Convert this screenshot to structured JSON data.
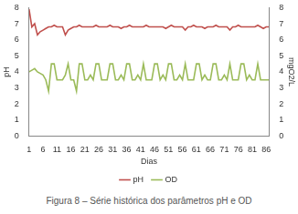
{
  "chart_data": {
    "type": "line",
    "title": "Figura 8 – Série histórica dos parâmetros pH e OD",
    "x_label": "Dias",
    "y_label": "pH",
    "y2_label": "mgO2/L",
    "x": [
      1,
      2,
      3,
      4,
      5,
      6,
      7,
      8,
      9,
      10,
      11,
      12,
      13,
      14,
      15,
      16,
      17,
      18,
      19,
      20,
      21,
      22,
      23,
      24,
      25,
      26,
      27,
      28,
      29,
      30,
      31,
      32,
      33,
      34,
      35,
      36,
      37,
      38,
      39,
      40,
      41,
      42,
      43,
      44,
      45,
      46,
      47,
      48,
      49,
      50,
      51,
      52,
      53,
      54,
      55,
      56,
      57,
      58,
      59,
      60,
      61,
      62,
      63,
      64,
      65,
      66,
      67,
      68,
      69,
      70,
      71,
      72,
      73,
      74,
      75,
      76,
      77,
      78,
      79,
      80,
      81,
      82,
      83,
      84,
      85,
      86,
      87
    ],
    "xlim": [
      1,
      87
    ],
    "xticks": [
      1,
      6,
      11,
      16,
      21,
      26,
      31,
      36,
      41,
      46,
      51,
      56,
      61,
      66,
      71,
      76,
      81,
      86
    ],
    "ylim": [
      0,
      8
    ],
    "yticks": [
      0,
      1,
      2,
      3,
      4,
      5,
      6,
      7,
      8
    ],
    "y2lim": [
      0,
      8
    ],
    "y2ticks": [
      0,
      1,
      2,
      3,
      4,
      5,
      6,
      7,
      8
    ],
    "grid": false,
    "legend": "bottom",
    "series": [
      {
        "name": "pH",
        "color": "#c0504d",
        "values": [
          7.9,
          6.8,
          7.0,
          6.3,
          6.5,
          6.6,
          6.7,
          6.8,
          6.8,
          6.9,
          6.8,
          6.8,
          6.8,
          6.3,
          6.6,
          6.7,
          6.8,
          6.8,
          6.9,
          6.8,
          6.8,
          6.8,
          6.8,
          6.8,
          6.9,
          6.8,
          6.8,
          6.8,
          6.8,
          6.9,
          6.8,
          6.8,
          6.8,
          6.7,
          6.8,
          6.8,
          6.9,
          6.8,
          6.8,
          6.8,
          6.8,
          6.8,
          6.9,
          6.8,
          6.8,
          6.8,
          6.8,
          6.8,
          6.8,
          6.7,
          6.8,
          6.9,
          6.8,
          6.8,
          6.8,
          6.8,
          6.6,
          6.8,
          6.8,
          6.9,
          6.8,
          6.8,
          6.8,
          6.7,
          6.8,
          6.8,
          6.8,
          6.9,
          6.8,
          6.8,
          6.8,
          6.8,
          6.6,
          6.8,
          6.8,
          6.9,
          6.8,
          6.8,
          6.8,
          6.8,
          6.8,
          6.8,
          6.9,
          6.8,
          6.7,
          6.8,
          6.8
        ]
      },
      {
        "name": "OD",
        "color": "#9bbb59",
        "axis": "y2",
        "values": [
          4.0,
          4.1,
          4.2,
          4.0,
          3.9,
          3.8,
          3.5,
          2.8,
          4.5,
          4.5,
          3.5,
          3.5,
          3.5,
          3.8,
          4.5,
          3.5,
          3.5,
          2.8,
          4.5,
          4.5,
          3.5,
          3.5,
          3.8,
          3.5,
          4.5,
          4.5,
          3.5,
          3.5,
          3.5,
          4.5,
          4.5,
          3.5,
          3.5,
          3.8,
          3.5,
          4.5,
          4.5,
          3.5,
          3.5,
          3.8,
          3.5,
          4.5,
          3.5,
          3.5,
          3.5,
          4.5,
          4.5,
          3.5,
          3.8,
          3.5,
          4.5,
          4.5,
          3.5,
          3.5,
          3.8,
          3.5,
          4.5,
          3.5,
          3.5,
          3.5,
          4.5,
          4.5,
          3.5,
          3.8,
          3.5,
          3.5,
          4.5,
          4.5,
          3.5,
          3.5,
          3.8,
          3.5,
          4.5,
          3.5,
          3.5,
          3.5,
          4.5,
          4.5,
          3.5,
          3.8,
          3.5,
          3.5,
          4.5,
          3.5,
          3.5,
          3.5,
          3.5
        ]
      }
    ]
  }
}
